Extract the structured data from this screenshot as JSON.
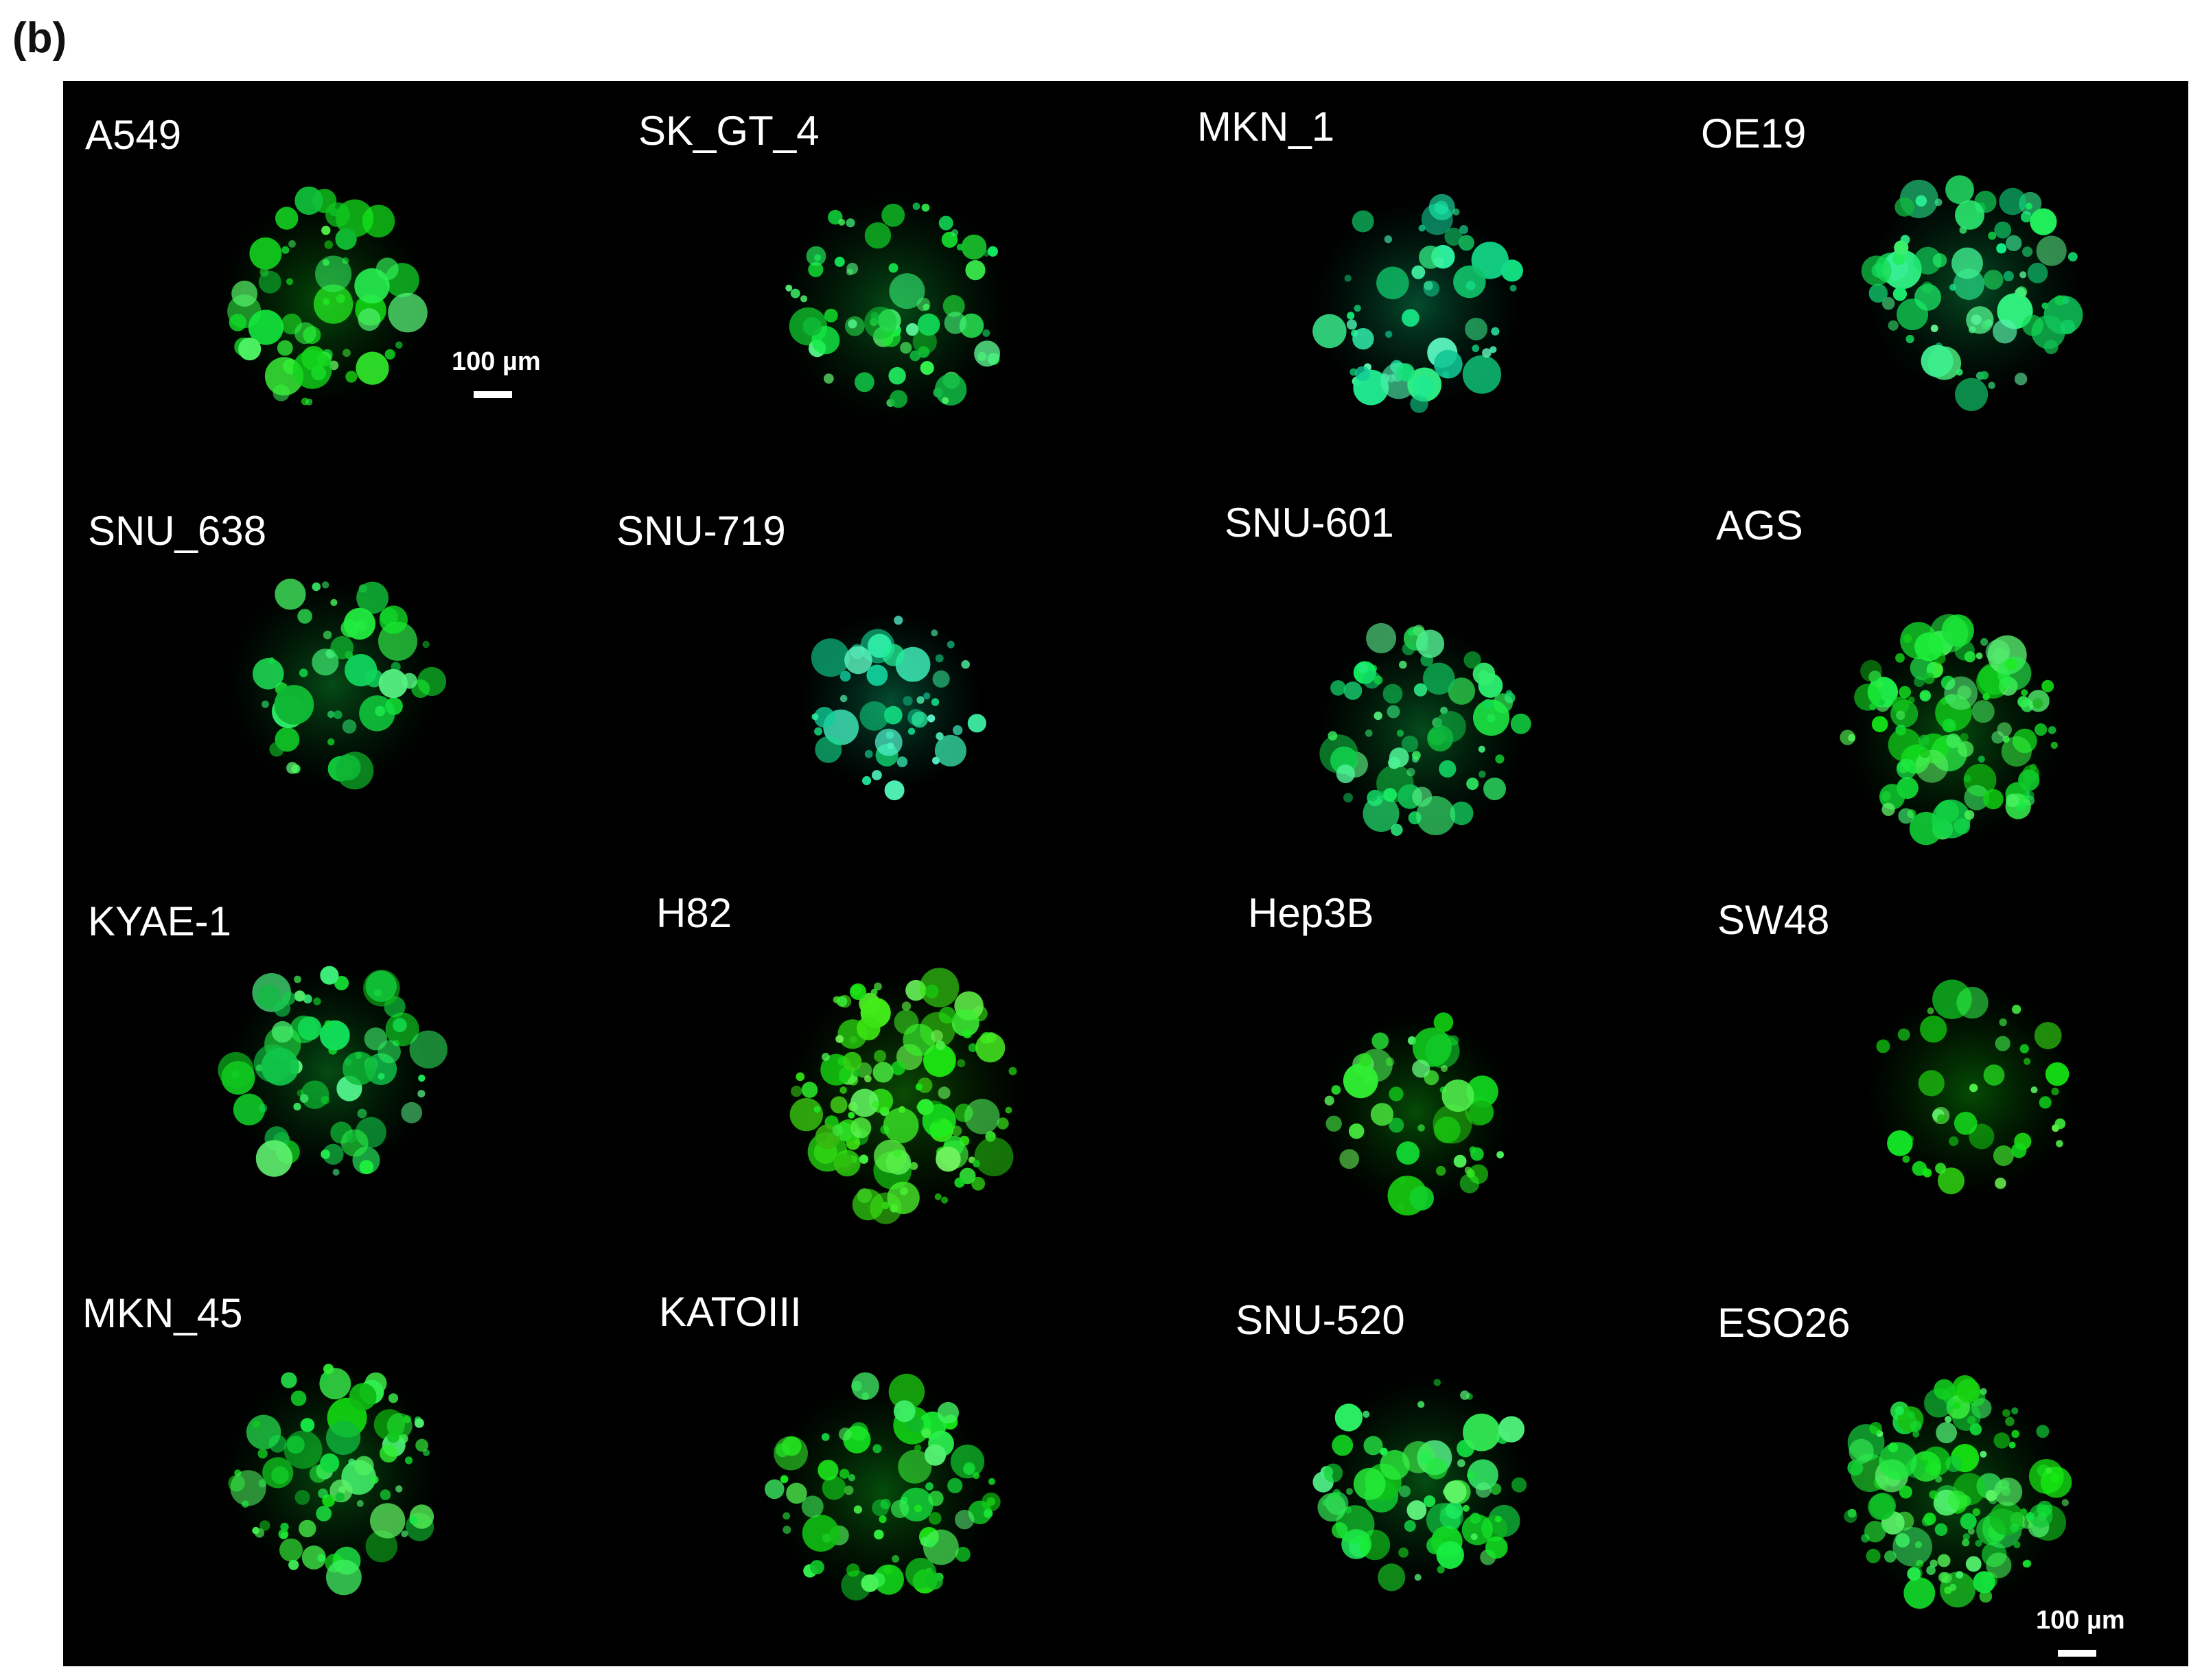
{
  "panel_label": "(b)",
  "background_color": "#000000",
  "fluorescence_color": "#22dd44",
  "scale_bar_text": "100 µm",
  "scale_bar_text_2": "100 µm",
  "cells": [
    {
      "label": "A549"
    },
    {
      "label": "SK_GT_4"
    },
    {
      "label": "MKN_1"
    },
    {
      "label": "OE19"
    },
    {
      "label": "SNU_638"
    },
    {
      "label": "SNU-719"
    },
    {
      "label": "SNU-601"
    },
    {
      "label": "AGS"
    },
    {
      "label": "KYAE-1"
    },
    {
      "label": "H82"
    },
    {
      "label": "Hep3B"
    },
    {
      "label": "SW48"
    },
    {
      "label": "MKN_45"
    },
    {
      "label": "KATOIII"
    },
    {
      "label": "SNU-520"
    },
    {
      "label": "ESO26"
    }
  ]
}
